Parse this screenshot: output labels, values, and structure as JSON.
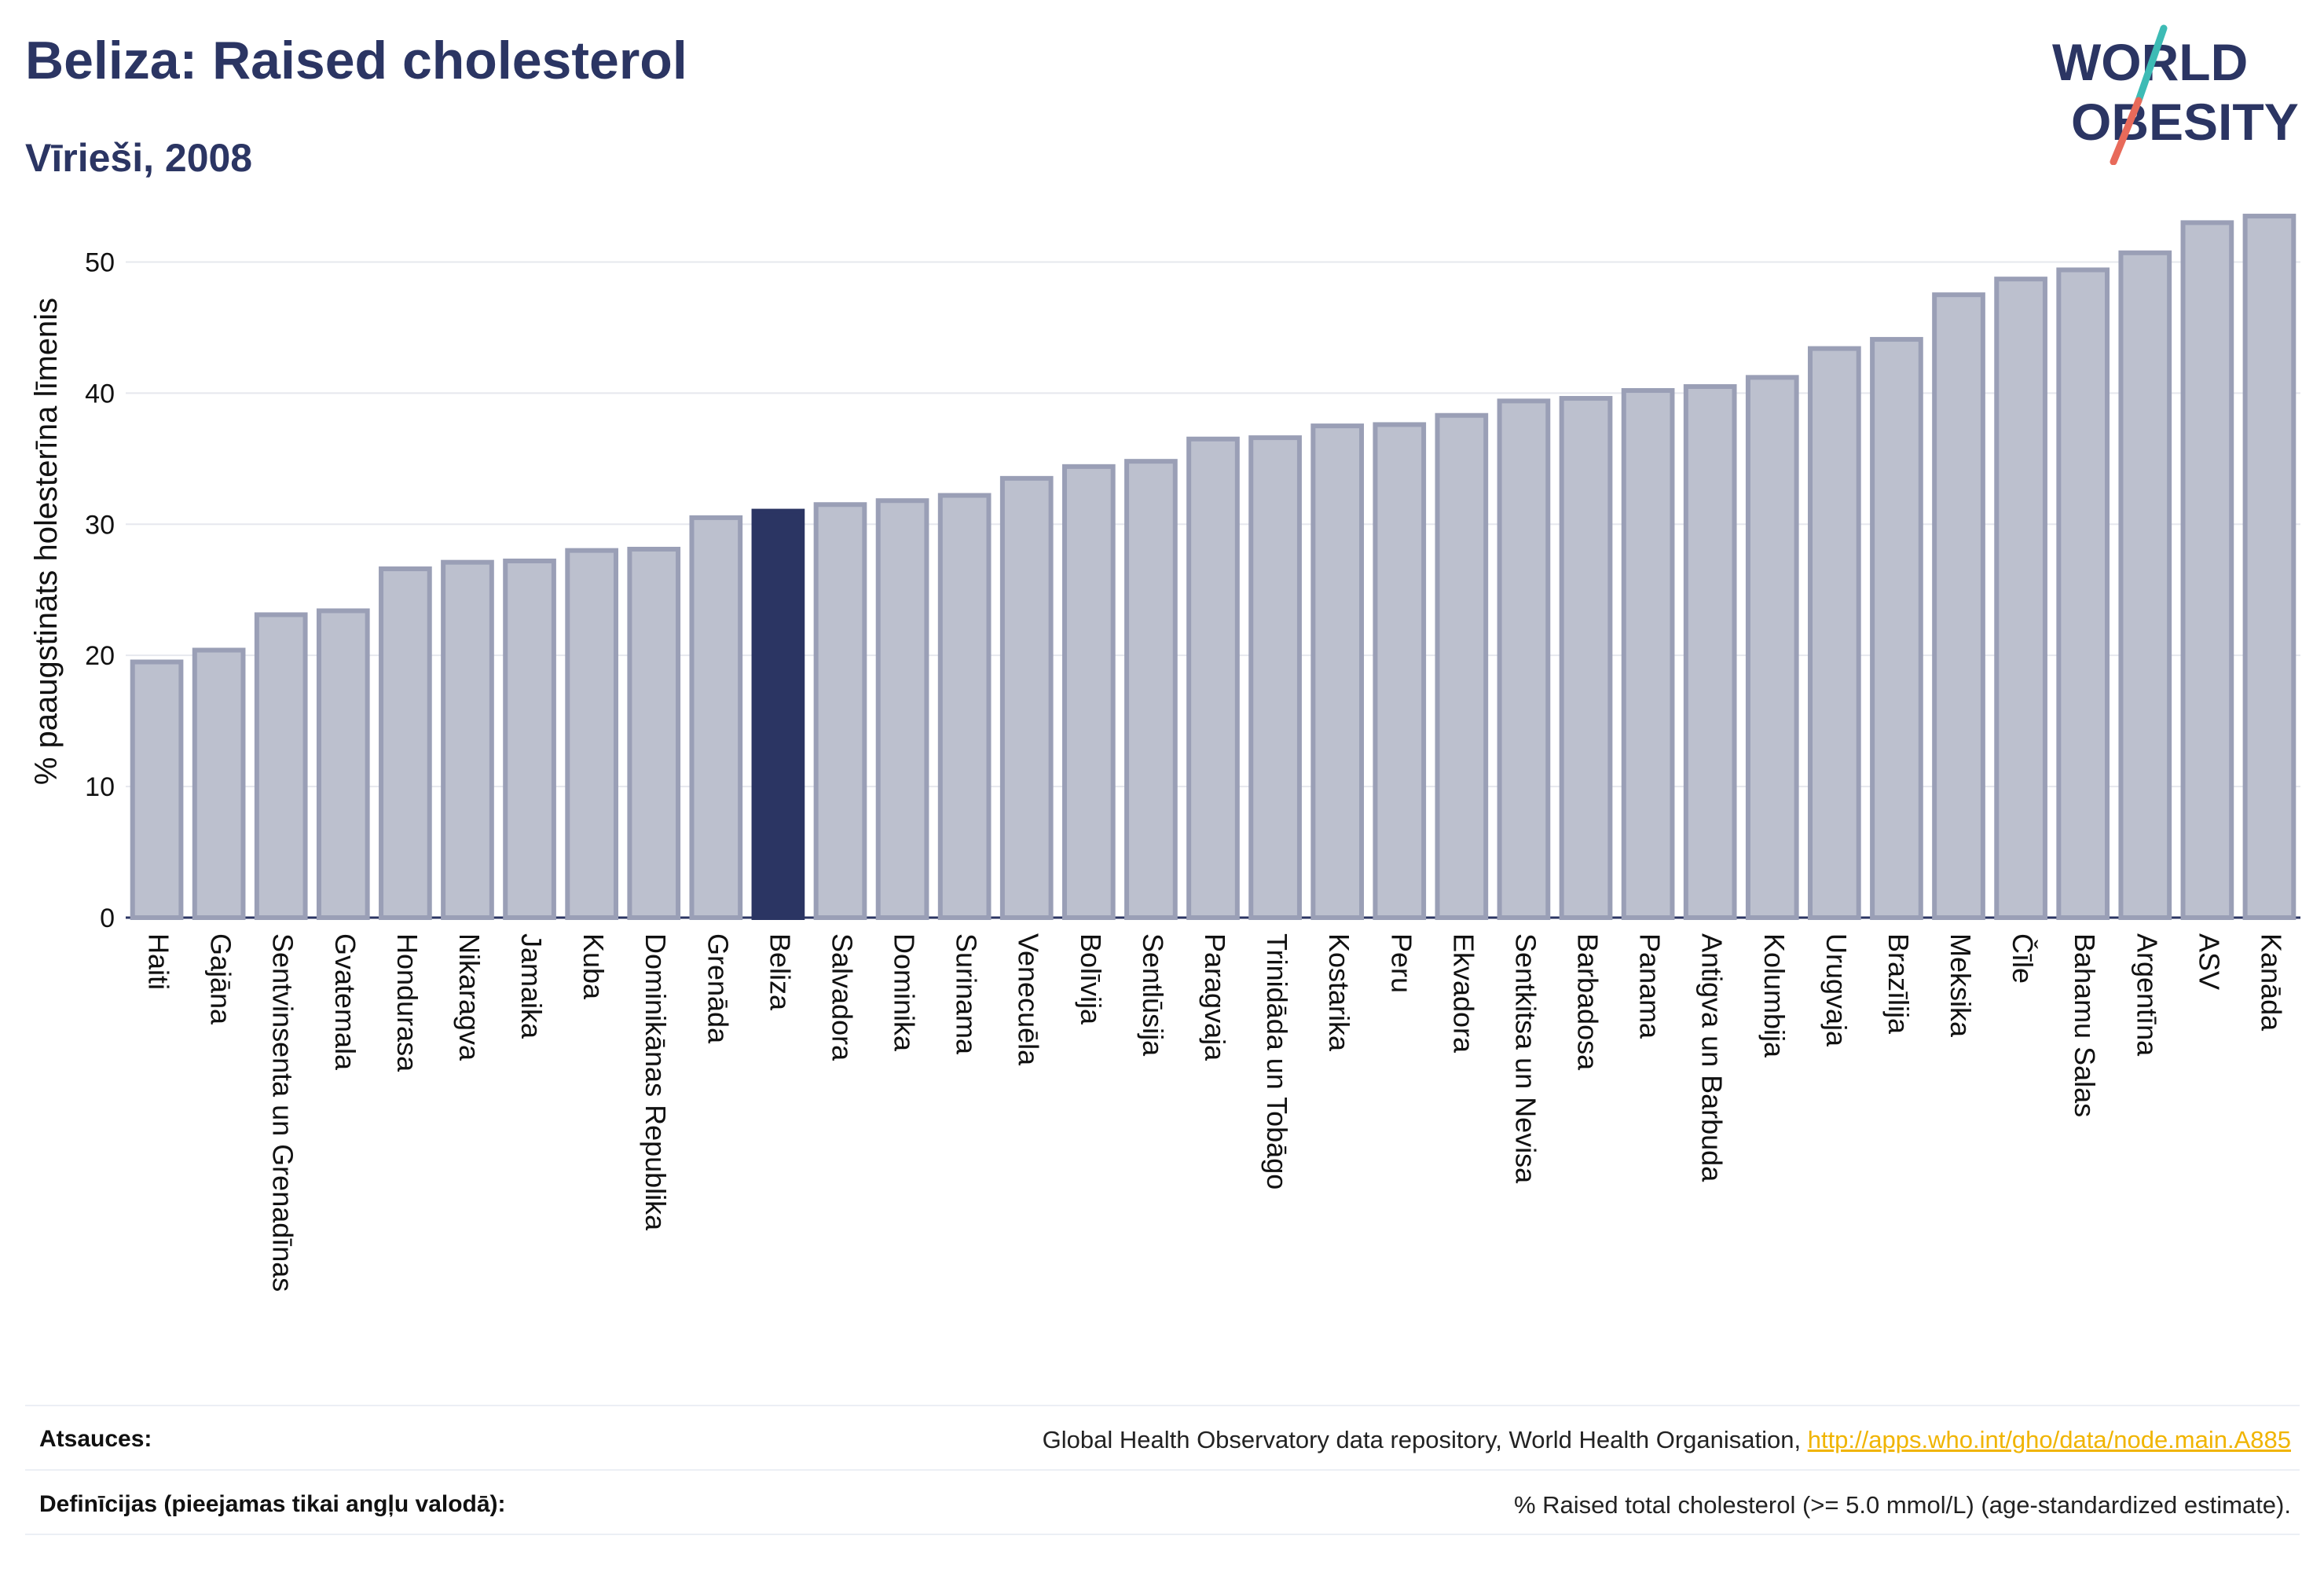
{
  "header": {
    "title": "Beliza: Raised cholesterol",
    "subtitle": "Vīrieši, 2008"
  },
  "logo": {
    "line1": "WORLD",
    "line2": "OBESITY",
    "slash_colors": [
      "#3dbbb5",
      "#e86a5a"
    ],
    "text_color": "#2b3563"
  },
  "colors": {
    "bar_default": "#bcc0ce",
    "bar_border": "#9a9fb6",
    "bar_highlight": "#2b3563",
    "grid": "#e6e8ee",
    "axis": "#2b3563"
  },
  "chart_data": {
    "type": "bar",
    "title": "Beliza: Raised cholesterol",
    "subtitle": "Vīrieši, 2008",
    "ylabel": "% paaugstināts holesterīna līmenis",
    "xlabel": "",
    "ylim": [
      0,
      55
    ],
    "yticks": [
      0,
      10,
      20,
      30,
      40,
      50
    ],
    "grid": true,
    "highlight": "Beliza",
    "categories": [
      "Haiti",
      "Gajāna",
      "Sentvinsenta un Grenadīnas",
      "Gvatemala",
      "Hondurasa",
      "Nikaragva",
      "Jamaika",
      "Kuba",
      "Dominikānas Republika",
      "Grenāda",
      "Beliza",
      "Salvadora",
      "Dominika",
      "Surinama",
      "Venecuēla",
      "Bolīvija",
      "Sentlūsija",
      "Paragvaja",
      "Trinidāda un Tobāgo",
      "Kostarika",
      "Peru",
      "Ekvadora",
      "Sentkitsa un Nevisa",
      "Barbadosa",
      "Panama",
      "Antigva un Barbuda",
      "Kolumbija",
      "Urugvaja",
      "Brazīlija",
      "Meksika",
      "Čīle",
      "Bahamu Salas",
      "Argentīna",
      "ASV",
      "Kanāda"
    ],
    "values": [
      19.5,
      20.4,
      23.1,
      23.4,
      26.6,
      27.1,
      27.2,
      28.0,
      28.1,
      30.5,
      31.0,
      31.5,
      31.8,
      32.2,
      33.5,
      34.4,
      34.8,
      36.5,
      36.6,
      37.5,
      37.6,
      38.3,
      39.4,
      39.6,
      40.2,
      40.5,
      41.2,
      43.4,
      44.1,
      47.5,
      48.7,
      49.4,
      50.7,
      53.0,
      53.5
    ]
  },
  "footer": {
    "sources_label": "Atsauces:",
    "sources_text": "Global Health Observatory data repository, World Health Organisation, ",
    "sources_link": "http://apps.who.int/gho/data/node.main.A885",
    "definitions_label": "Definīcijas (pieejamas tikai angļu valodā):",
    "definitions_text": "% Raised total cholesterol (>= 5.0 mmol/L) (age-standardized estimate)."
  }
}
